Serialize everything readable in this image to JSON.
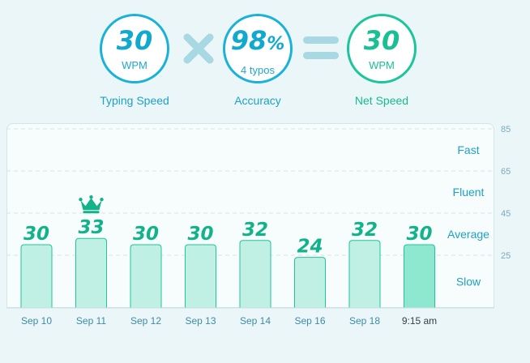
{
  "stats": {
    "typing_speed": {
      "value": "30",
      "unit": "WPM",
      "label": "Typing Speed"
    },
    "accuracy": {
      "value": "98",
      "suffix": "%",
      "sub": "4 typos",
      "label": "Accuracy"
    },
    "net_speed": {
      "value": "30",
      "unit": "WPM",
      "label": "Net Speed"
    }
  },
  "icons": {
    "operator_1": "times-icon",
    "operator_2": "equals-icon",
    "best": "crown-icon"
  },
  "colors": {
    "accent_blue": "#1bb2d7",
    "accent_green": "#1dc69a",
    "bar_fill": "#bff0e3",
    "bar_fill_current": "#8ee8d0",
    "bar_label": "#12b38a"
  },
  "chart_data": {
    "type": "bar",
    "categories": [
      "Sep 10",
      "Sep 11",
      "Sep 12",
      "Sep 13",
      "Sep 14",
      "Sep 16",
      "Sep 18",
      "9:15 am"
    ],
    "values": [
      30,
      33,
      30,
      30,
      32,
      24,
      32,
      30
    ],
    "current_index": 7,
    "best_index": 1,
    "yticks": [
      25,
      45,
      65,
      85
    ],
    "ylim": [
      0,
      85
    ],
    "zones": [
      "Slow",
      "Average",
      "Fluent",
      "Fast"
    ],
    "grid": "dashed horizontal"
  }
}
